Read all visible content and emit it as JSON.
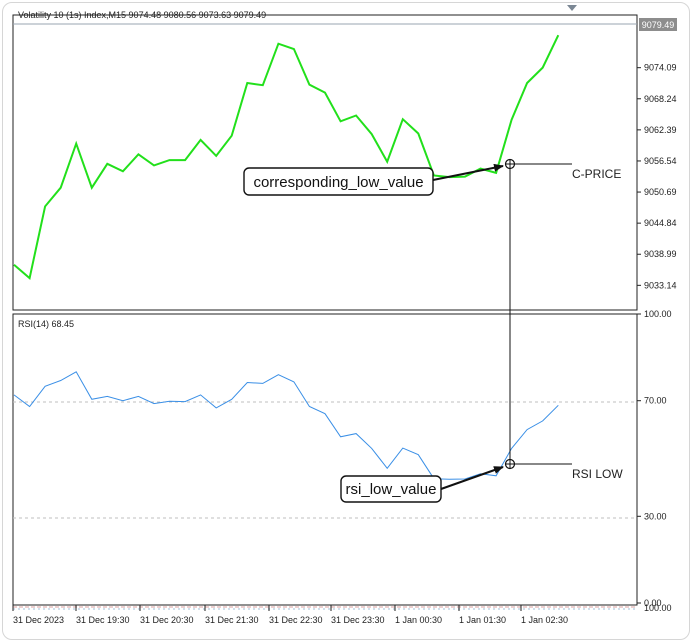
{
  "main_chart": {
    "header": "Volatility 10 (1s) Index,M15  9074.48 9080.56 9073.63 9079.49",
    "current_price_label": "9079.49",
    "price_ticks": [
      "9074.09",
      "9068.24",
      "9062.39",
      "9056.54",
      "9050.69",
      "9044.84",
      "9038.99",
      "9033.14"
    ],
    "line_color": "#22e01b",
    "callout_label": "corresponding_low_value",
    "marker_label": "C-PRICE"
  },
  "rsi_panel": {
    "header": "RSI(14) 68.45",
    "ticks": [
      "100.00",
      "70.00",
      "30.00",
      "0.00"
    ],
    "overlap_tick": "100.00",
    "line_color": "#3a8fe6",
    "callout_label": "rsi_low_value",
    "marker_label": "RSI LOW"
  },
  "time_axis": {
    "labels": [
      "31 Dec 2023",
      "31 Dec 19:30",
      "31 Dec 20:30",
      "31 Dec 21:30",
      "31 Dec 22:30",
      "31 Dec 23:30",
      "1 Jan 00:30",
      "1 Jan 01:30",
      "1 Jan 02:30"
    ]
  },
  "chart_data": [
    {
      "type": "line",
      "title": "Volatility 10 (1s) Index,M15",
      "series": [
        {
          "name": "Volatility 10 (1s) Index",
          "values": [
            9037.0,
            9034.5,
            9048.0,
            9051.5,
            9059.8,
            9051.5,
            9056.0,
            9054.6,
            9057.8,
            9055.7,
            9056.7,
            9056.7,
            9060.5,
            9057.5,
            9061.3,
            9071.2,
            9070.8,
            9078.6,
            9077.6,
            9070.9,
            9069.4,
            9064.0,
            9065.1,
            9061.6,
            9056.4,
            9064.4,
            9061.7,
            9053.8,
            9053.5,
            9053.6,
            9055.1,
            9054.3,
            9064.3,
            9071.2,
            9074.1,
            9080.2
          ]
        }
      ],
      "ylim": [
        9028.5,
        9084.0
      ]
    },
    {
      "type": "line",
      "title": "RSI(14) 68.45",
      "series": [
        {
          "name": "RSI(14)",
          "values": [
            72.0,
            68.0,
            75.0,
            77.0,
            80.0,
            70.5,
            71.5,
            70.0,
            71.5,
            69.0,
            69.8,
            69.7,
            72.0,
            67.5,
            70.5,
            76.3,
            76.0,
            79.0,
            76.5,
            68.0,
            65.5,
            57.5,
            58.6,
            53.5,
            46.6,
            53.6,
            51.3,
            43.0,
            42.8,
            42.9,
            44.7,
            44.0,
            53.5,
            60.0,
            63.0,
            68.4
          ]
        }
      ],
      "ylim": [
        0,
        100
      ]
    }
  ]
}
